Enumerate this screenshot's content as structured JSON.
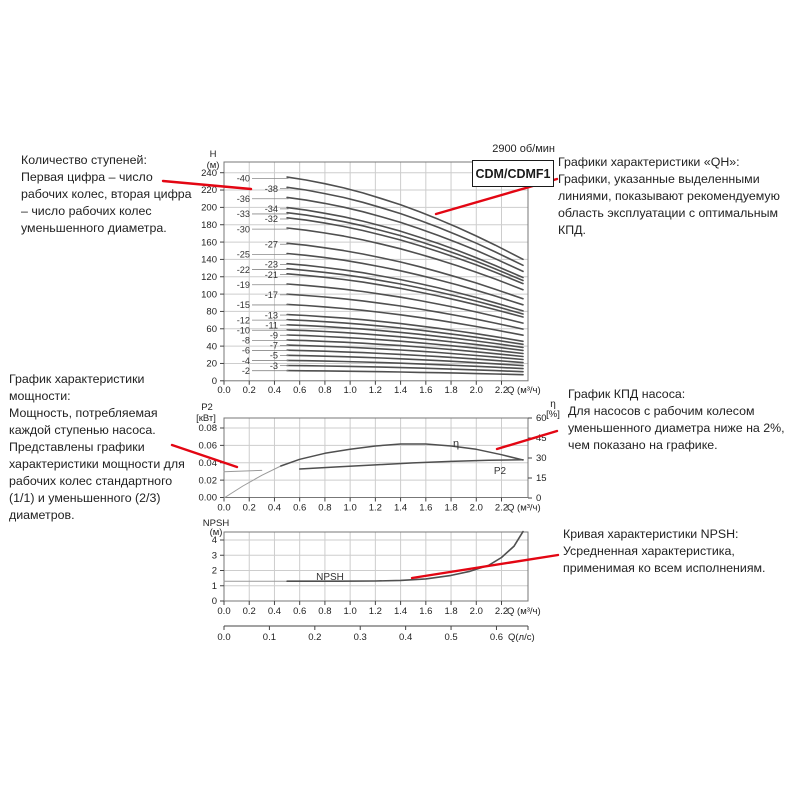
{
  "page": {
    "bg": "#ffffff",
    "accent_red": "#e30613",
    "curve_color": "#4f4f4f",
    "thin_curve_color": "#9a9a9a",
    "grid_color": "#cdcdcd",
    "border_color": "#777777",
    "tick_text_color": "#222222"
  },
  "header": {
    "rpm_label": "2900 об/мин",
    "model_label": "CDM/CDMF1"
  },
  "notes": {
    "stages": {
      "title": "Количество ступеней:",
      "body": "Первая цифра – число рабочих колес, вторая цифра – число рабочих колес уменьшенного диаметра."
    },
    "qh": {
      "title": "Графики характеристики «QH»:",
      "body": "Графики, указанные выделенными линиями, показывают рекомендуемую область эксплуатации с оптимальным КПД."
    },
    "power": {
      "title": "График характеристики мощности:",
      "body": "Мощность, потребляемая каждой ступенью насоса. Представлены графики характеристики мощности для рабочих колес стандартного (1/1) и уменьшенного (2/3) диаметров."
    },
    "eff": {
      "title": "График КПД насоса:",
      "body": "Для насосов с рабочим колесом уменьшенного диаметра ниже на 2%, чем показано на графике."
    },
    "npsh": {
      "title": "Кривая характеристики NPSH:",
      "body": "Усредненная характеристика, применимая ко всем исполнениям."
    }
  },
  "chart_data": [
    {
      "type": "line",
      "name": "qh-curves",
      "title": "CDM/CDMF1",
      "speed": "2900 об/мин",
      "xlabel": "Q (м³/ч)",
      "ylabel_lines": [
        "H",
        "(м)"
      ],
      "xlim": [
        0,
        2.4
      ],
      "ylim": [
        0,
        240
      ],
      "grid": true,
      "xticks": [
        0.0,
        0.2,
        0.4,
        0.6,
        0.8,
        1.0,
        1.2,
        1.4,
        1.6,
        1.8,
        2.0,
        2.2
      ],
      "yticks": [
        0,
        20,
        40,
        60,
        80,
        100,
        120,
        140,
        160,
        180,
        200,
        220,
        240
      ],
      "stages": [
        2,
        3,
        4,
        5,
        6,
        7,
        8,
        9,
        10,
        11,
        12,
        13,
        15,
        17,
        19,
        21,
        22,
        23,
        25,
        27,
        30,
        32,
        33,
        34,
        36,
        38,
        40
      ],
      "stage_labels_left_column": [
        40,
        36,
        33,
        30,
        25,
        22,
        19,
        15,
        12,
        10,
        8,
        6,
        4,
        2
      ],
      "stage_labels_right_column": [
        38,
        34,
        32,
        27,
        23,
        21,
        17,
        13,
        11,
        9,
        7,
        5,
        3
      ],
      "head_per_stage_m": 6,
      "q_recommended_range": [
        0.5,
        2.37
      ],
      "curve_shape": {
        "q": [
          0.5,
          0.65,
          0.8,
          0.95,
          1.1,
          1.25,
          1.4,
          1.55,
          1.7,
          1.85,
          2.0,
          2.15,
          2.37
        ],
        "head_factor": [
          0.979,
          0.965,
          0.947,
          0.927,
          0.903,
          0.875,
          0.846,
          0.812,
          0.776,
          0.737,
          0.696,
          0.652,
          0.584
        ]
      }
    },
    {
      "type": "line",
      "name": "power-and-efficiency",
      "xlabel": "Q (м³/ч)",
      "ylabel_left_lines": [
        "P2",
        "[кВт]"
      ],
      "ylabel_right_lines": [
        "η",
        "[%]"
      ],
      "xticks": [
        0.0,
        0.2,
        0.4,
        0.6,
        0.8,
        1.0,
        1.2,
        1.4,
        1.6,
        1.8,
        2.0,
        2.2
      ],
      "yticks_left": [
        0.0,
        0.02,
        0.04,
        0.06,
        0.08
      ],
      "yticks_right": [
        0,
        15,
        30,
        45,
        60
      ],
      "ylim_left": [
        0,
        0.08
      ],
      "ylim_right": [
        0,
        60
      ],
      "series": [
        {
          "name": "P2",
          "label": "P2",
          "axis": "left",
          "unit": "кВт",
          "x": [
            0,
            0.3,
            0.6,
            0.9,
            1.2,
            1.5,
            1.8,
            2.1,
            2.37
          ],
          "y": [
            0.0297,
            0.0312,
            0.0328,
            0.0352,
            0.0375,
            0.0398,
            0.0415,
            0.0428,
            0.0435
          ]
        },
        {
          "name": "eta",
          "label": "η",
          "axis": "right",
          "unit": "%",
          "x": [
            0,
            0.15,
            0.3,
            0.45,
            0.6,
            0.8,
            1.0,
            1.2,
            1.4,
            1.6,
            1.8,
            2.0,
            2.2,
            2.37
          ],
          "y": [
            0,
            9,
            17,
            24,
            29,
            33.5,
            36.5,
            39,
            40.5,
            40.5,
            39,
            36.5,
            32.5,
            28.5
          ]
        }
      ]
    },
    {
      "type": "line",
      "name": "npsh",
      "xlabel": "Q (м³/ч)",
      "xlabel_secondary": "Q(л/с)",
      "ylabel_lines": [
        "NPSH",
        "(м)"
      ],
      "xticks": [
        0.0,
        0.2,
        0.4,
        0.6,
        0.8,
        1.0,
        1.2,
        1.4,
        1.6,
        1.8,
        2.0,
        2.2
      ],
      "xticks_secondary": [
        0.0,
        0.1,
        0.2,
        0.3,
        0.4,
        0.5,
        0.6
      ],
      "yticks": [
        0,
        1,
        2,
        3,
        4
      ],
      "ylim": [
        0,
        4.6
      ],
      "series": [
        {
          "name": "NPSH",
          "label": "NPSH",
          "unit": "м",
          "x": [
            0,
            0.5,
            0.9,
            1.2,
            1.4,
            1.6,
            1.8,
            1.95,
            2.1,
            2.2,
            2.3,
            2.37
          ],
          "y": [
            1.3,
            1.3,
            1.3,
            1.31,
            1.35,
            1.45,
            1.68,
            1.95,
            2.35,
            2.85,
            3.6,
            4.55
          ]
        }
      ]
    }
  ],
  "pointer_lines": [
    {
      "name": "stages-pointer",
      "from": [
        163,
        181
      ],
      "to": [
        251,
        189
      ]
    },
    {
      "name": "qh-pointer",
      "from": [
        557,
        179
      ],
      "to": [
        436,
        214
      ]
    },
    {
      "name": "power-pointer",
      "from": [
        172,
        445
      ],
      "to": [
        237,
        467
      ]
    },
    {
      "name": "eff-pointer",
      "from": [
        557,
        431
      ],
      "to": [
        497,
        449
      ]
    },
    {
      "name": "npsh-pointer",
      "from": [
        558,
        555
      ],
      "to": [
        412,
        578
      ]
    }
  ]
}
